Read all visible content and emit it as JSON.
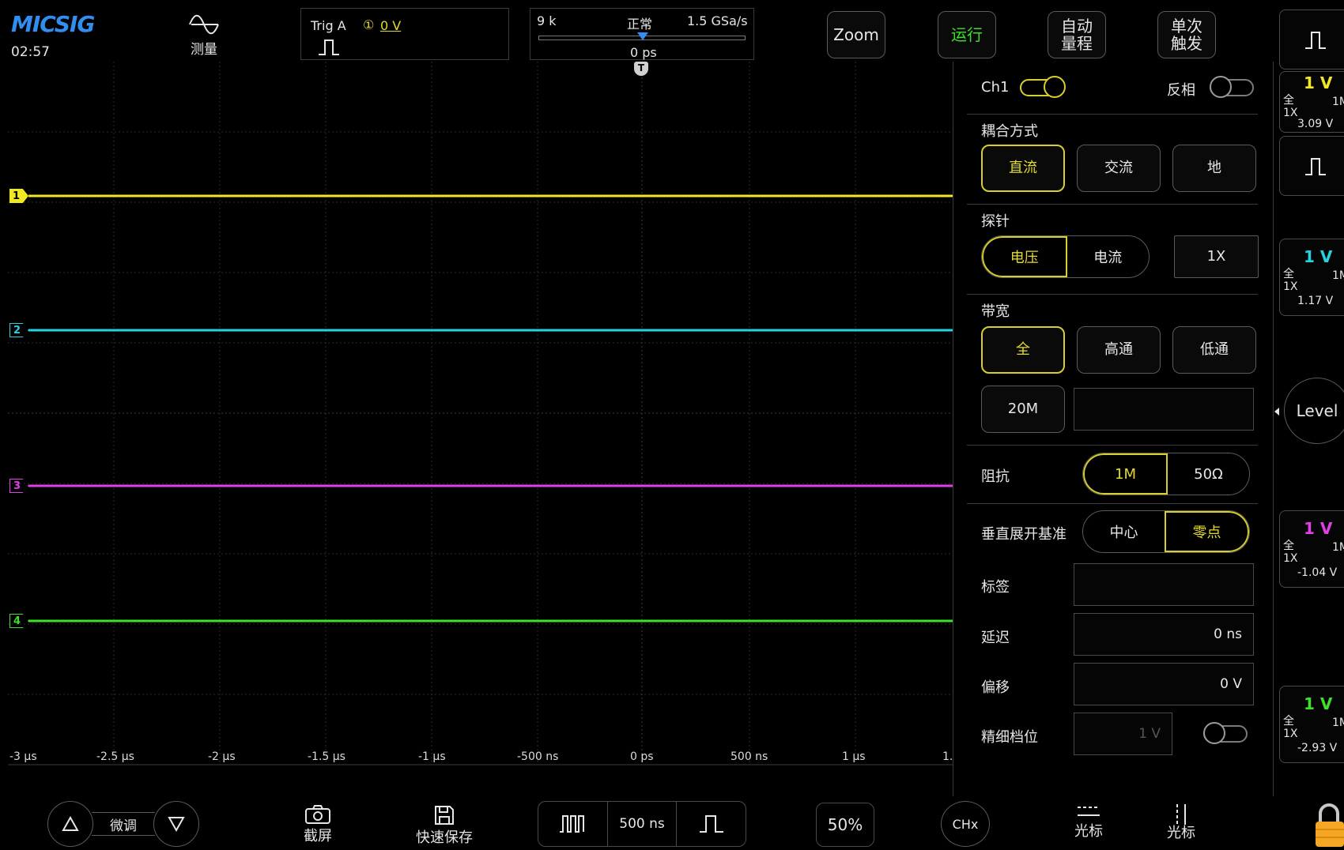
{
  "header": {
    "logo": "MICSIG",
    "time": "02:57",
    "measure_label": "测量",
    "trigger": {
      "source": "Trig A",
      "channel_badge": "①",
      "level": "0 V"
    },
    "acq": {
      "memory": "9 k",
      "mode": "正常",
      "sample_rate": "1.5 GSa/s",
      "delay": "0 ps",
      "marker": "T"
    },
    "buttons": {
      "zoom": "Zoom",
      "run": "运行",
      "auto_line1": "自动",
      "auto_line2": "量程",
      "single_line1": "单次",
      "single_line2": "触发"
    }
  },
  "channel_markers": [
    {
      "label": "1",
      "color": "#f0e822"
    },
    {
      "label": "2",
      "color": "#25d3e0"
    },
    {
      "label": "3",
      "color": "#e23fe6"
    },
    {
      "label": "4",
      "color": "#3ee02b"
    }
  ],
  "time_axis": [
    "-3 μs",
    "-2.5 μs",
    "-2 μs",
    "-1.5 μs",
    "-1 μs",
    "-500 ns",
    "0 ps",
    "500 ns",
    "1 μs",
    "1."
  ],
  "panel": {
    "channel": "Ch1",
    "invert_label": "反相",
    "coupling": {
      "title": "耦合方式",
      "options": [
        "直流",
        "交流",
        "地"
      ],
      "selected": 0
    },
    "probe": {
      "title": "探针",
      "options": [
        "电压",
        "电流"
      ],
      "selected": 0,
      "factor": "1X"
    },
    "bandwidth": {
      "title": "带宽",
      "options": [
        "全",
        "高通",
        "低通"
      ],
      "selected": 0,
      "limit": "20M"
    },
    "impedance": {
      "title": "阻抗",
      "options": [
        "1M",
        "50Ω"
      ],
      "selected": 0
    },
    "vertical_ref": {
      "title": "垂直展开基准",
      "options": [
        "中心",
        "零点"
      ],
      "selected": 1
    },
    "tag_label": "标签",
    "delay_label": "延迟",
    "delay_value": "0 ns",
    "offset_label": "偏移",
    "offset_value": "0 V",
    "fine_label": "精细档位",
    "fine_value": "1 V"
  },
  "right_bar": {
    "channels": [
      {
        "scale": "1 V",
        "color": "#f0e822",
        "bw": "全",
        "probe": "1X",
        "imp": "1M",
        "offset": "3.09 V"
      },
      {
        "scale": "1 V",
        "color": "#25d3e0",
        "bw": "全",
        "probe": "1X",
        "imp": "1M",
        "offset": "1.17 V"
      },
      {
        "scale": "1 V",
        "color": "#e23fe6",
        "bw": "全",
        "probe": "1X",
        "imp": "1M",
        "offset": "-1.04 V"
      },
      {
        "scale": "1 V",
        "color": "#3ee02b",
        "bw": "全",
        "probe": "1X",
        "imp": "1M",
        "offset": "-2.93 V"
      }
    ],
    "level": "Level"
  },
  "bottom": {
    "fine_tune": "微调",
    "screenshot": "截屏",
    "quick_save": "快速保存",
    "timebase": "500 ns",
    "trigger_pos": "50%",
    "chx": "CHx",
    "cursor_h": "光标",
    "cursor_v": "光标"
  }
}
